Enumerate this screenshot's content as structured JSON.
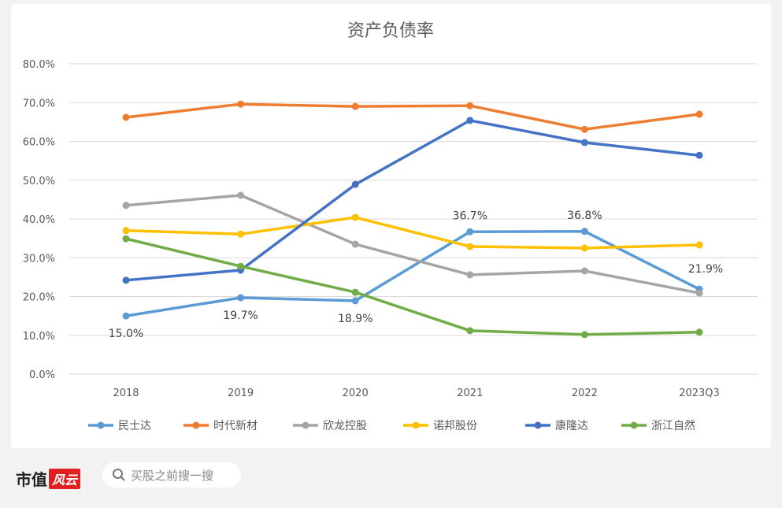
{
  "chart_data": {
    "type": "line",
    "title": "资产负债率",
    "categories": [
      "2018",
      "2019",
      "2020",
      "2021",
      "2022",
      "2023Q3"
    ],
    "ylim": [
      0,
      80
    ],
    "yticks": [
      "0.0%",
      "10.0%",
      "20.0%",
      "30.0%",
      "40.0%",
      "50.0%",
      "60.0%",
      "70.0%",
      "80.0%"
    ],
    "grid": true,
    "legend": "bottom",
    "series": [
      {
        "name": "民士达",
        "color": "#5B9BD5",
        "values": [
          15.0,
          19.7,
          18.9,
          36.7,
          36.8,
          21.9
        ],
        "labels": [
          "15.0%",
          "19.7%",
          "18.9%",
          "36.7%",
          "36.8%",
          "21.9%"
        ]
      },
      {
        "name": "时代新材",
        "color": "#ED7D31",
        "values": [
          66.2,
          69.6,
          69.0,
          69.2,
          63.1,
          67.0
        ]
      },
      {
        "name": "欣龙控股",
        "color": "#A5A5A5",
        "values": [
          43.5,
          46.1,
          33.5,
          25.6,
          26.6,
          20.9
        ]
      },
      {
        "name": "诺邦股份",
        "color": "#FFC000",
        "values": [
          37.0,
          36.1,
          40.4,
          32.9,
          32.5,
          33.3
        ]
      },
      {
        "name": "康隆达",
        "color": "#4472C4",
        "values": [
          24.2,
          26.8,
          48.9,
          65.4,
          59.7,
          56.4
        ]
      },
      {
        "name": "浙江自然",
        "color": "#70AD47",
        "values": [
          34.9,
          27.8,
          21.1,
          11.2,
          10.2,
          10.8
        ]
      }
    ]
  },
  "footer": {
    "brand": "市值",
    "brand_badge": "风云",
    "search_placeholder": "买股之前搜一搜"
  }
}
